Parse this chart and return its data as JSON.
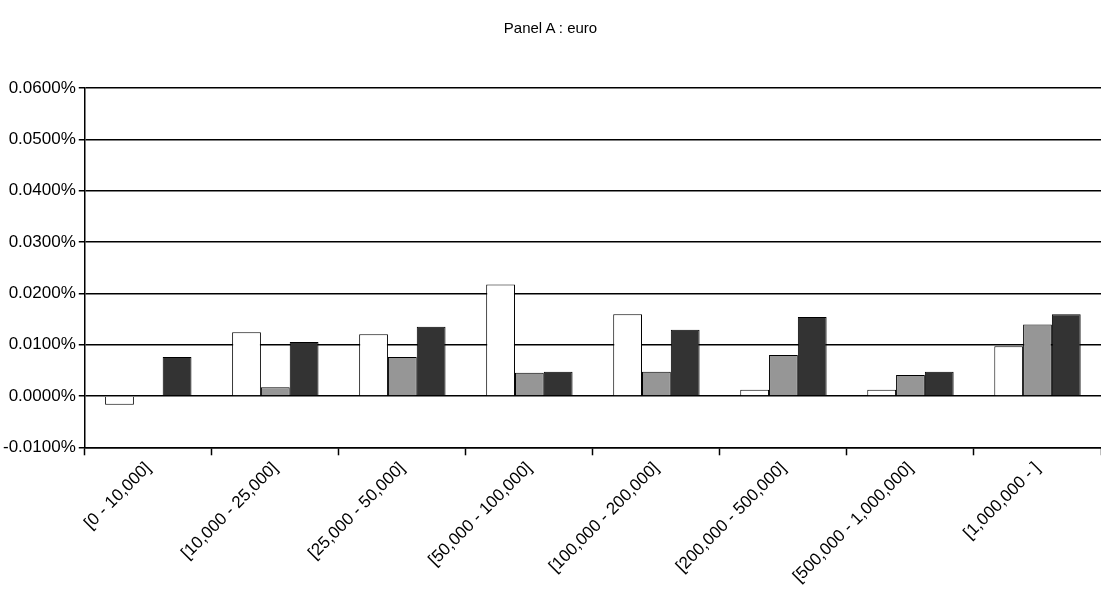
{
  "chart_data": {
    "type": "bar",
    "title": "Panel A : euro",
    "categories": [
      "[0 - 10,000]",
      "[10,000 - 25,000]",
      "[25,000 - 50,000]",
      "[50,000 - 100,000]",
      "[100,000 - 200,000]",
      "[200,000 - 500,000]",
      "[500,000 - 1,000,000]",
      "[1,000,000 - ]"
    ],
    "series": [
      {
        "color": "#ffffff",
        "values": [
          -0.0017,
          0.0124,
          0.012,
          0.0217,
          0.0159,
          0.0012,
          0.0012,
          0.0097
        ]
      },
      {
        "color": "#969696",
        "values": [
          0,
          0.0017,
          0.0076,
          0.0045,
          0.0047,
          0.008,
          0.0041,
          0.0139
        ]
      },
      {
        "color": "#333333",
        "values": [
          0.0076,
          0.0105,
          0.0135,
          0.0047,
          0.0129,
          0.0154,
          0.0047,
          0.0159
        ]
      }
    ],
    "ylim": [
      -0.01,
      0.06
    ],
    "yticks": [
      {
        "value": -0.01,
        "label": "-0.0100%"
      },
      {
        "value": 0,
        "label": "0.0000%"
      },
      {
        "value": 0.01,
        "label": "0.0100%"
      },
      {
        "value": 0.02,
        "label": "0.0200%"
      },
      {
        "value": 0.03,
        "label": "0.0300%"
      },
      {
        "value": 0.04,
        "label": "0.0400%"
      },
      {
        "value": 0.05,
        "label": "0.0500%"
      },
      {
        "value": 0.06,
        "label": "0.0600%"
      }
    ],
    "grid": "y",
    "legend": false
  }
}
